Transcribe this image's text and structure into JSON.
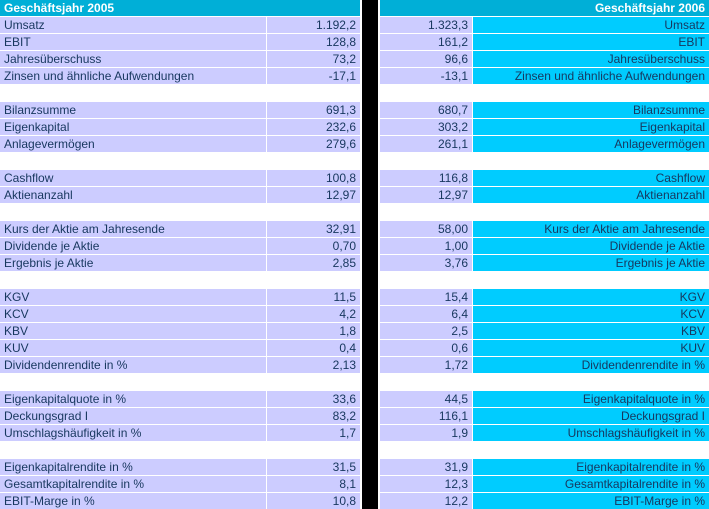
{
  "header": {
    "left": "Geschäftsjahr 2005",
    "right": "Geschäftsjahr 2006"
  },
  "colors": {
    "header_bg": "#00AFD7",
    "header_text": "#FFFFFF",
    "label_left_bg": "#CCCCFF",
    "value_bg": "#CCCCFF",
    "label_right_bg": "#00CCFF",
    "divider_bg": "#000000",
    "text_color": "#17375E",
    "gridline": "#FFFFFF"
  },
  "rows": [
    {
      "label": "Umsatz",
      "v2005": "1.192,2",
      "v2006": "1.323,3"
    },
    {
      "label": "EBIT",
      "v2005": "128,8",
      "v2006": "161,2"
    },
    {
      "label": "Jahresüberschuss",
      "v2005": "73,2",
      "v2006": "96,6"
    },
    {
      "label": "Zinsen und ähnliche Aufwendungen",
      "v2005": "-17,1",
      "v2006": "-13,1"
    },
    {
      "empty": true
    },
    {
      "label": "Bilanzsumme",
      "v2005": "691,3",
      "v2006": "680,7"
    },
    {
      "label": "Eigenkapital",
      "v2005": "232,6",
      "v2006": "303,2"
    },
    {
      "label": "Anlagevermögen",
      "v2005": "279,6",
      "v2006": "261,1"
    },
    {
      "empty": true
    },
    {
      "label": "Cashflow",
      "v2005": "100,8",
      "v2006": "116,8"
    },
    {
      "label": "Aktienanzahl",
      "v2005": "12,97",
      "v2006": "12,97"
    },
    {
      "empty": true
    },
    {
      "label": "Kurs der Aktie am Jahresende",
      "v2005": "32,91",
      "v2006": "58,00"
    },
    {
      "label": "Dividende je Aktie",
      "v2005": "0,70",
      "v2006": "1,00"
    },
    {
      "label": "Ergebnis je Aktie",
      "v2005": "2,85",
      "v2006": "3,76"
    },
    {
      "empty": true
    },
    {
      "label": "KGV",
      "v2005": "11,5",
      "v2006": "15,4"
    },
    {
      "label": "KCV",
      "v2005": "4,2",
      "v2006": "6,4"
    },
    {
      "label": "KBV",
      "v2005": "1,8",
      "v2006": "2,5"
    },
    {
      "label": "KUV",
      "v2005": "0,4",
      "v2006": "0,6"
    },
    {
      "label": "Dividendenrendite in %",
      "v2005": "2,13",
      "v2006": "1,72"
    },
    {
      "empty": true
    },
    {
      "label": "Eigenkapitalquote in %",
      "v2005": "33,6",
      "v2006": "44,5"
    },
    {
      "label": "Deckungsgrad I",
      "v2005": "83,2",
      "v2006": "116,1"
    },
    {
      "label": "Umschlagshäufigkeit in %",
      "v2005": "1,7",
      "v2006": "1,9"
    },
    {
      "empty": true
    },
    {
      "label": "Eigenkapitalrendite in %",
      "v2005": "31,5",
      "v2006": "31,9"
    },
    {
      "label": "Gesamtkapitalrendite in %",
      "v2005": "8,1",
      "v2006": "12,3"
    },
    {
      "label": "EBIT-Marge in %",
      "v2005": "10,8",
      "v2006": "12,2"
    }
  ]
}
